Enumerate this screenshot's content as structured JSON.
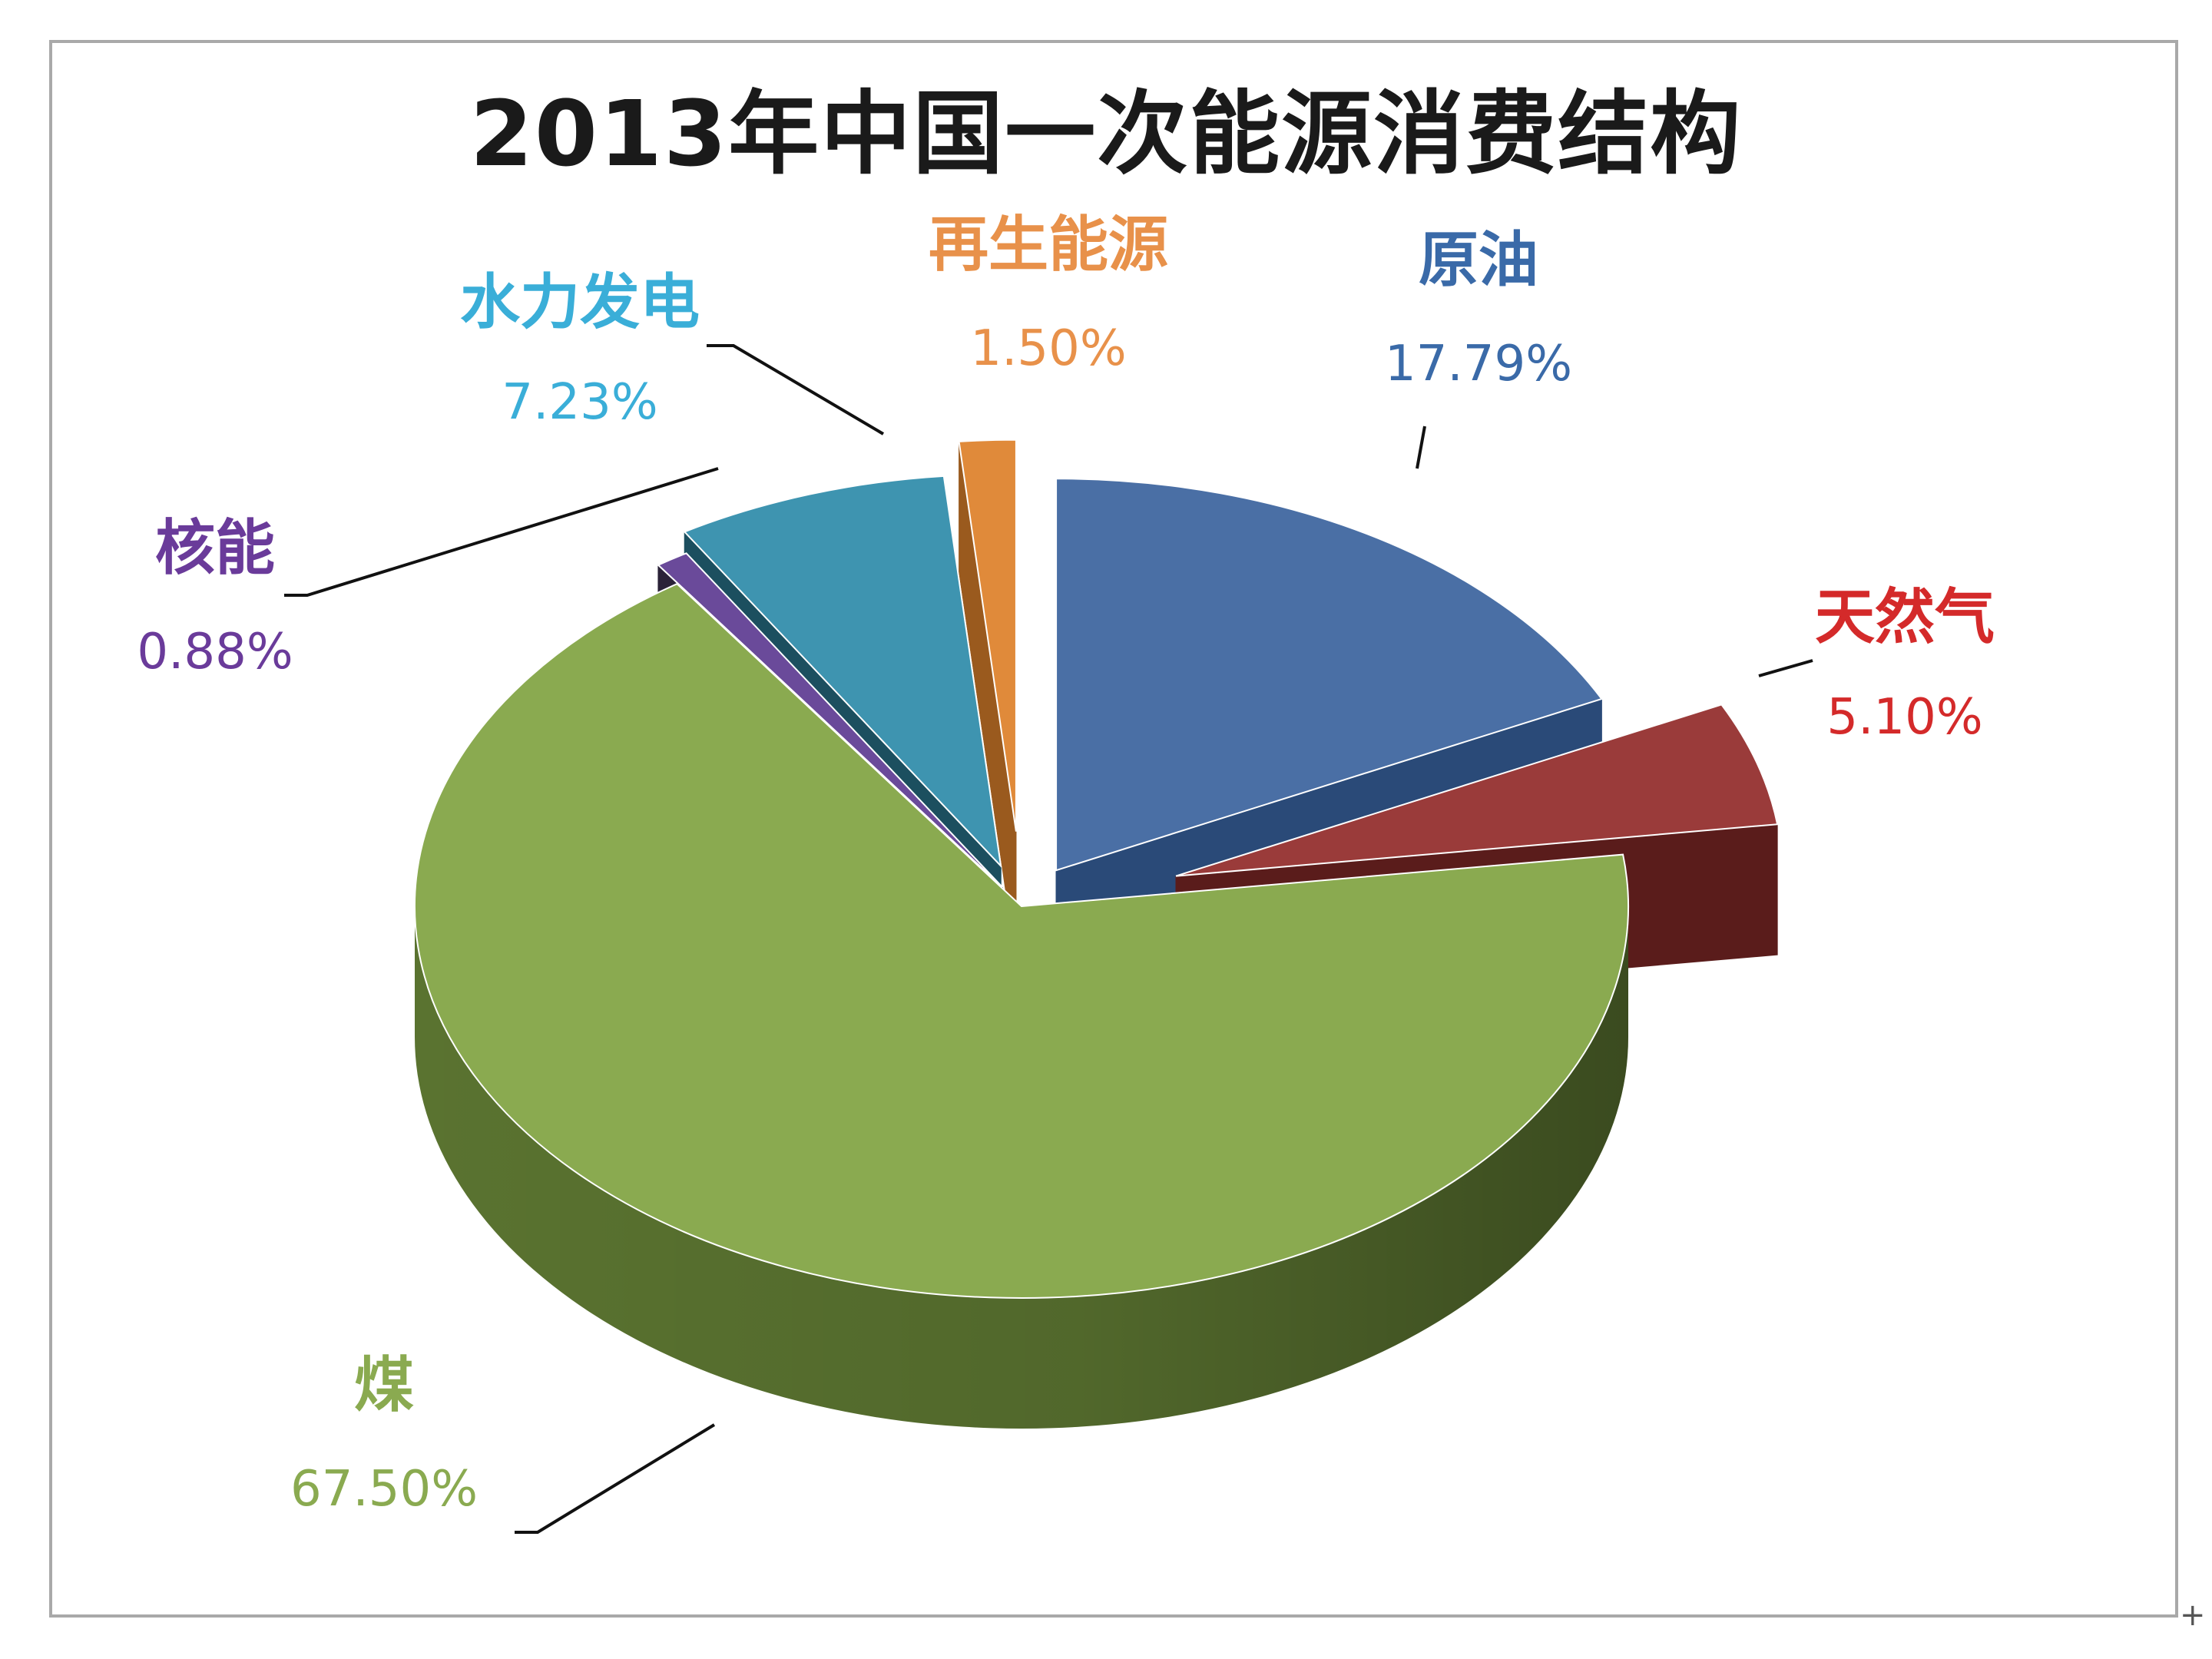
{
  "chart_data": {
    "type": "pie",
    "title": "2013年中国一次能源消费结构",
    "style": "3d-exploded",
    "slices": [
      {
        "label": "原油",
        "value": 17.79,
        "display": "17.79%",
        "color": "#4a6fa5",
        "side_color": "#2a4a78",
        "text_color": "#3a6aa8"
      },
      {
        "label": "天然气",
        "value": 5.1,
        "display": "5.10%",
        "color": "#9a3b3a",
        "side_color": "#5a1c1b",
        "text_color": "#d42a2a"
      },
      {
        "label": "煤",
        "value": 67.5,
        "display": "67.50%",
        "color": "#8aaa50",
        "side_color": "#5a7330",
        "text_color": "#8aaa50"
      },
      {
        "label": "核能",
        "value": 0.88,
        "display": "0.88%",
        "color": "#6a4a9a",
        "side_color": "#2b2238",
        "text_color": "#6a3b9a"
      },
      {
        "label": "水力发电",
        "value": 7.23,
        "display": "7.23%",
        "color": "#3e94b0",
        "side_color": "#1c4f5f",
        "text_color": "#3aaed8"
      },
      {
        "label": "再生能源",
        "value": 1.5,
        "display": "1.50%",
        "color": "#e08a3a",
        "side_color": "#9a5a1e",
        "text_color": "#e8914a"
      }
    ]
  }
}
